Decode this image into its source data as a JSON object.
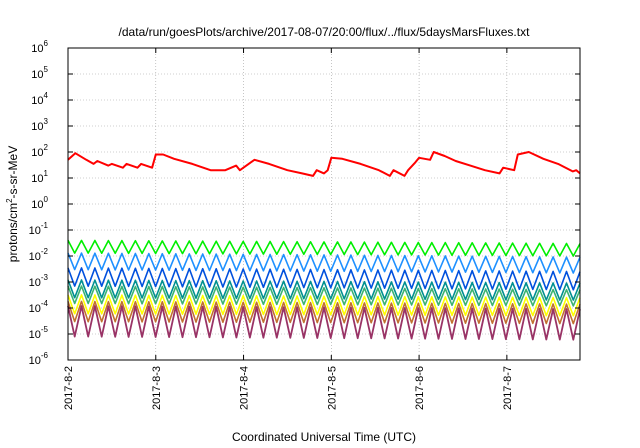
{
  "chart_data": {
    "type": "line",
    "title": "/data/run/goesPlots/archive/2017-08-07/20:00/flux/../flux/5daysMarsFluxes.txt",
    "xlabel": "Coordinated Universal Time (UTC)",
    "ylabel_parts": {
      "base": "protons/cm",
      "sup": "2",
      "rest": "-s-sr-MeV"
    },
    "y_scale": "log",
    "ylim": [
      1e-06,
      1000000.0
    ],
    "y_ticks": [
      {
        "value": 1000000.0,
        "mantissa": "10",
        "exp": "6"
      },
      {
        "value": 100000.0,
        "mantissa": "10",
        "exp": "5"
      },
      {
        "value": 10000.0,
        "mantissa": "10",
        "exp": "4"
      },
      {
        "value": 1000.0,
        "mantissa": "10",
        "exp": "3"
      },
      {
        "value": 100.0,
        "mantissa": "10",
        "exp": "2"
      },
      {
        "value": 10.0,
        "mantissa": "10",
        "exp": "1"
      },
      {
        "value": 1.0,
        "mantissa": "10",
        "exp": "0"
      },
      {
        "value": 0.1,
        "mantissa": "10",
        "exp": "-1"
      },
      {
        "value": 0.01,
        "mantissa": "10",
        "exp": "-2"
      },
      {
        "value": 0.001,
        "mantissa": "10",
        "exp": "-3"
      },
      {
        "value": 0.0001,
        "mantissa": "10",
        "exp": "-4"
      },
      {
        "value": 1e-05,
        "mantissa": "10",
        "exp": "-5"
      },
      {
        "value": 1e-06,
        "mantissa": "10",
        "exp": "-6"
      }
    ],
    "x_range": [
      "2017-08-02",
      "2017-08-07T20:00"
    ],
    "x_ticks": [
      "2017-8-2",
      "2017-8-3",
      "2017-8-4",
      "2017-8-5",
      "2017-8-6",
      "2017-8-7"
    ],
    "grid": true,
    "series": [
      {
        "color": "#ff0000",
        "stroke_width": 2.0,
        "x": [
          "2017-08-02T00:00",
          "2017-08-02T02:00",
          "2017-08-02T05:00",
          "2017-08-02T07:00",
          "2017-08-02T08:00",
          "2017-08-02T11:00",
          "2017-08-02T12:00",
          "2017-08-02T15:00",
          "2017-08-02T16:00",
          "2017-08-02T19:00",
          "2017-08-02T20:00",
          "2017-08-02T23:00",
          "2017-08-03T00:00",
          "2017-08-03T02:00",
          "2017-08-03T05:00",
          "2017-08-03T10:00",
          "2017-08-03T15:00",
          "2017-08-03T19:00",
          "2017-08-03T22:00",
          "2017-08-03T23:00",
          "2017-08-04T02:00",
          "2017-08-04T03:00",
          "2017-08-04T07:00",
          "2017-08-04T12:00",
          "2017-08-04T16:00",
          "2017-08-04T19:00",
          "2017-08-04T20:00",
          "2017-08-04T22:00",
          "2017-08-04T23:00",
          "2017-08-05T00:00",
          "2017-08-05T03:00",
          "2017-08-05T08:00",
          "2017-08-05T13:00",
          "2017-08-05T16:00",
          "2017-08-05T17:00",
          "2017-08-05T20:00",
          "2017-08-05T21:00",
          "2017-08-05T23:00",
          "2017-08-06T00:00",
          "2017-08-06T03:00",
          "2017-08-06T04:00",
          "2017-08-06T07:00",
          "2017-08-06T10:00",
          "2017-08-06T14:00",
          "2017-08-06T18:00",
          "2017-08-06T22:00",
          "2017-08-06T23:00",
          "2017-08-07T02:00",
          "2017-08-07T03:00",
          "2017-08-07T06:00",
          "2017-08-07T10:00",
          "2017-08-07T14:00",
          "2017-08-07T18:00",
          "2017-08-07T19:00",
          "2017-08-07T20:00"
        ],
        "values": [
          50,
          90,
          50,
          35,
          45,
          30,
          35,
          25,
          35,
          25,
          35,
          25,
          80,
          80,
          55,
          35,
          20,
          20,
          30,
          20,
          40,
          50,
          35,
          20,
          15,
          12,
          20,
          15,
          20,
          60,
          55,
          35,
          20,
          12,
          20,
          12,
          20,
          40,
          60,
          50,
          100,
          70,
          45,
          30,
          20,
          15,
          25,
          20,
          80,
          100,
          55,
          35,
          18,
          20,
          15
        ]
      },
      {
        "color": "#00ee00",
        "stroke_width": 1.6,
        "teeth": 38,
        "hi": [
          0.04,
          0.03
        ],
        "lo": [
          0.013,
          0.01
        ]
      },
      {
        "color": "#1e90ff",
        "stroke_width": 1.6,
        "teeth": 38,
        "hi": [
          0.013,
          0.009
        ],
        "lo": [
          0.003,
          0.0022
        ]
      },
      {
        "color": "#0050dd",
        "stroke_width": 1.6,
        "teeth": 38,
        "hi": [
          0.0035,
          0.0025
        ],
        "lo": [
          0.0007,
          0.0005
        ]
      },
      {
        "color": "#009090",
        "stroke_width": 1.6,
        "teeth": 38,
        "hi": [
          0.0012,
          0.0009
        ],
        "lo": [
          0.00025,
          0.0002
        ]
      },
      {
        "color": "#3cb371",
        "stroke_width": 1.6,
        "teeth": 38,
        "hi": [
          0.0007,
          0.0005
        ],
        "lo": [
          0.00015,
          0.00012
        ]
      },
      {
        "color": "#ffff00",
        "stroke_width": 1.6,
        "teeth": 38,
        "hi": [
          0.00032,
          0.00025
        ],
        "lo": [
          6e-05,
          5e-05
        ]
      },
      {
        "color": "#c07030",
        "stroke_width": 1.6,
        "teeth": 38,
        "hi": [
          0.00018,
          0.00014
        ],
        "lo": [
          3e-05,
          2.5e-05
        ]
      },
      {
        "color": "#993366",
        "stroke_width": 1.8,
        "teeth": 38,
        "hi": [
          0.00012,
          9e-05
        ],
        "lo": [
          8e-06,
          6e-06
        ]
      }
    ]
  }
}
